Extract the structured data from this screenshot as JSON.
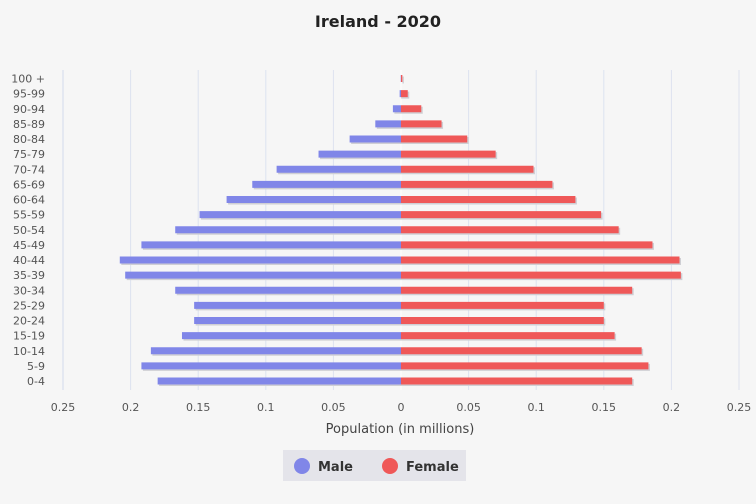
{
  "chart_data": {
    "type": "bar",
    "orientation": "horizontal",
    "title": "Ireland - 2020",
    "xlabel": "Population (in millions)",
    "ylabel": "",
    "xlim": [
      -0.25,
      0.25
    ],
    "x_ticks": [
      -0.25,
      -0.2,
      -0.15,
      -0.1,
      -0.05,
      0,
      0.05,
      0.1,
      0.15,
      0.2,
      0.25
    ],
    "x_tick_labels": [
      "0.25",
      "0.2",
      "0.15",
      "0.1",
      "0.05",
      "0",
      "0.05",
      "0.1",
      "0.15",
      "0.2",
      "0.25"
    ],
    "categories": [
      "100 +",
      "95-99",
      "90-94",
      "85-89",
      "80-84",
      "75-79",
      "70-74",
      "65-69",
      "60-64",
      "55-59",
      "50-54",
      "45-49",
      "40-44",
      "35-39",
      "30-34",
      "25-29",
      "20-24",
      "15-19",
      "10-14",
      "5-9",
      "0-4"
    ],
    "series": [
      {
        "name": "Male",
        "color": "#8086e8",
        "values": [
          0.0002,
          0.001,
          0.006,
          0.019,
          0.038,
          0.061,
          0.092,
          0.11,
          0.129,
          0.149,
          0.167,
          0.192,
          0.208,
          0.204,
          0.167,
          0.153,
          0.153,
          0.162,
          0.185,
          0.192,
          0.18
        ]
      },
      {
        "name": "Female",
        "color": "#ef5858",
        "values": [
          0.001,
          0.005,
          0.015,
          0.03,
          0.049,
          0.07,
          0.098,
          0.112,
          0.129,
          0.148,
          0.161,
          0.186,
          0.206,
          0.207,
          0.171,
          0.15,
          0.15,
          0.158,
          0.178,
          0.183,
          0.171
        ]
      }
    ],
    "grid": true,
    "legend_position": "bottom-center"
  }
}
